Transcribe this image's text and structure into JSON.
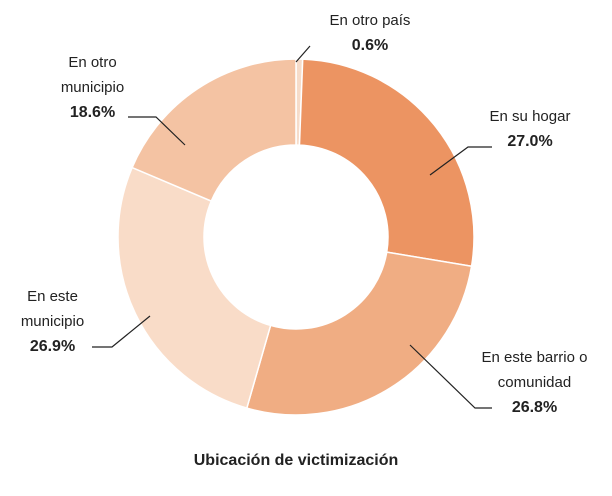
{
  "chart_data": {
    "type": "donut",
    "title": "Ubicación de victimización",
    "categories": [
      "En otro país",
      "En su hogar",
      "En este barrio o comunidad",
      "En este municipio",
      "En otro municipio"
    ],
    "values": [
      0.6,
      27.0,
      26.8,
      26.9,
      18.6
    ],
    "value_labels": [
      "0.6%",
      "27.0%",
      "26.8%",
      "26.9%",
      "18.6%"
    ],
    "colors": [
      "#f6dcca",
      "#ec9462",
      "#f0ad83",
      "#f9dcc8",
      "#f4c3a3"
    ]
  }
}
